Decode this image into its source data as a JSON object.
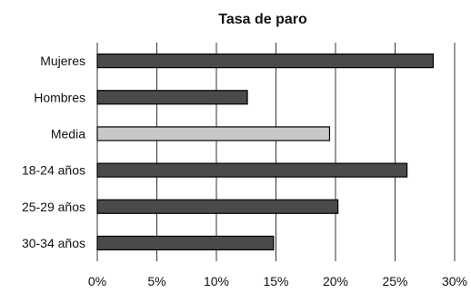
{
  "chart_data": {
    "type": "bar",
    "orientation": "horizontal",
    "title": "Tasa de paro",
    "xlabel": "",
    "ylabel": "",
    "categories": [
      "Mujeres",
      "Hombres",
      "Media",
      "18-24 años",
      "25-29 años",
      "30-34 años"
    ],
    "values": [
      28.2,
      12.6,
      19.5,
      26.0,
      20.2,
      14.8
    ],
    "highlight_category": "Media",
    "xlim": [
      0,
      30
    ],
    "x_ticks": [
      0,
      5,
      10,
      15,
      20,
      25,
      30
    ],
    "x_tick_labels": [
      "0%",
      "5%",
      "10%",
      "15%",
      "20%",
      "25%",
      "30%"
    ],
    "grid": "vertical",
    "legend": "none",
    "colors": {
      "bar": "#4a4a4a",
      "highlight": "#c8c8c8",
      "bar_stroke": "#000000",
      "grid": "#333333"
    }
  }
}
